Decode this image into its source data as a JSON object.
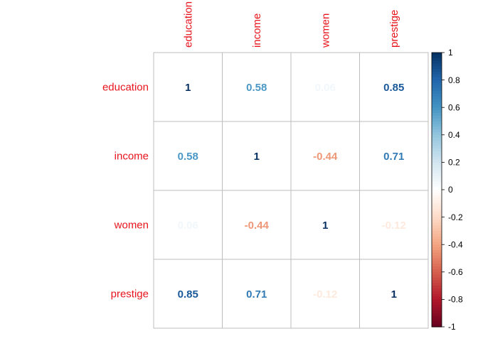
{
  "chart_data": {
    "type": "heatmap",
    "variables": [
      "education",
      "income",
      "women",
      "prestige"
    ],
    "matrix": [
      [
        1,
        0.58,
        0.06,
        0.85
      ],
      [
        0.58,
        1,
        -0.44,
        0.71
      ],
      [
        0.06,
        -0.44,
        1,
        -0.12
      ],
      [
        0.85,
        0.71,
        -0.12,
        1
      ]
    ],
    "cell_labels": [
      [
        "1",
        "0.58",
        "0.06",
        "0.85"
      ],
      [
        "0.58",
        "1",
        "-0.44",
        "0.71"
      ],
      [
        "0.06",
        "-0.44",
        "1",
        "-0.12"
      ],
      [
        "0.85",
        "0.71",
        "-0.12",
        "1"
      ]
    ],
    "colorbar": {
      "range": [
        -1,
        1
      ],
      "ticks": [
        "1",
        "0.8",
        "0.6",
        "0.4",
        "0.2",
        "0",
        "-0.2",
        "-0.4",
        "-0.6",
        "-0.8",
        "-1"
      ],
      "tick_values": [
        1,
        0.8,
        0.6,
        0.4,
        0.2,
        0,
        -0.2,
        -0.4,
        -0.6,
        -0.8,
        -1
      ],
      "placement": "right"
    },
    "colors": {
      "label": "#e8141c",
      "grid": "#bdbdbd",
      "palette": [
        "#67001f",
        "#b2182b",
        "#d6604d",
        "#f4a582",
        "#fddbc7",
        "#ffffff",
        "#d1e5f0",
        "#92c5de",
        "#4393c3",
        "#2166ac",
        "#053061"
      ]
    }
  }
}
